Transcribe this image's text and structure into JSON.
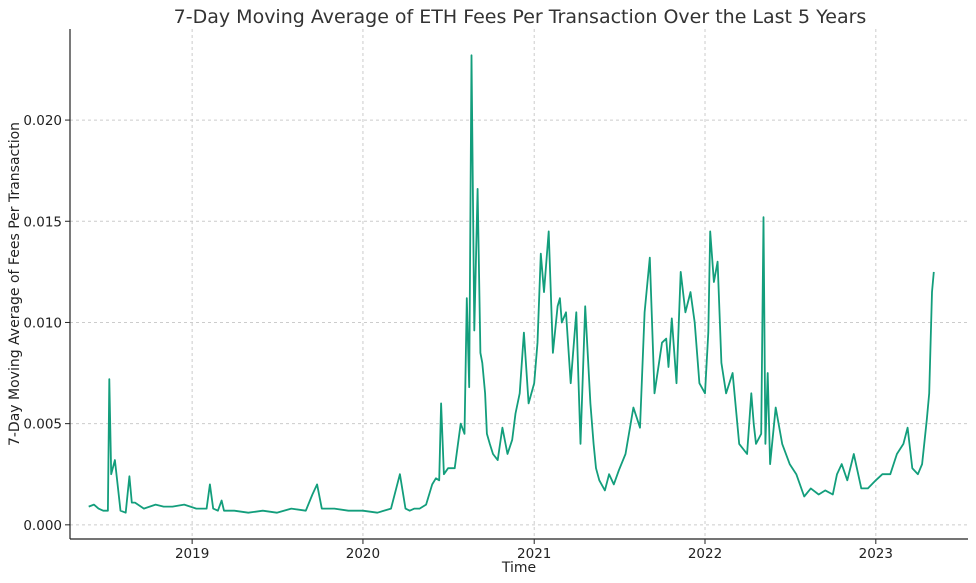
{
  "chart_data": {
    "type": "line",
    "title": "7-Day Moving Average of ETH Fees Per Transaction Over the Last 5 Years",
    "xlabel": "Time",
    "ylabel": "7-Day Moving Average of Fees Per Transaction",
    "xlim": [
      "2018-04-15",
      "2023-07-17"
    ],
    "ylim": [
      -0.0007,
      0.0245
    ],
    "x_ticks": [
      {
        "date": "2019-01-01",
        "label": "2019"
      },
      {
        "date": "2020-01-01",
        "label": "2020"
      },
      {
        "date": "2021-01-01",
        "label": "2021"
      },
      {
        "date": "2022-01-01",
        "label": "2022"
      },
      {
        "date": "2023-01-01",
        "label": "2023"
      }
    ],
    "y_ticks": [
      {
        "value": 0.0,
        "label": "0.000"
      },
      {
        "value": 0.005,
        "label": "0.005"
      },
      {
        "value": 0.01,
        "label": "0.010"
      },
      {
        "value": 0.015,
        "label": "0.015"
      },
      {
        "value": 0.02,
        "label": "0.020"
      }
    ],
    "grid": true,
    "color": "#139e7c",
    "series": [
      {
        "name": "",
        "x": [
          "2018-05-25",
          "2018-06-05",
          "2018-06-15",
          "2018-06-25",
          "2018-07-05",
          "2018-07-08",
          "2018-07-12",
          "2018-07-20",
          "2018-08-01",
          "2018-08-12",
          "2018-08-20",
          "2018-08-25",
          "2018-09-01",
          "2018-09-20",
          "2018-10-15",
          "2018-11-01",
          "2018-11-20",
          "2018-12-15",
          "2019-01-10",
          "2019-02-01",
          "2019-02-08",
          "2019-02-15",
          "2019-02-25",
          "2019-03-05",
          "2019-03-10",
          "2019-04-01",
          "2019-05-01",
          "2019-06-01",
          "2019-07-01",
          "2019-08-01",
          "2019-09-01",
          "2019-09-15",
          "2019-09-25",
          "2019-10-05",
          "2019-11-01",
          "2019-12-01",
          "2020-01-01",
          "2020-02-01",
          "2020-03-01",
          "2020-03-20",
          "2020-04-01",
          "2020-04-10",
          "2020-04-20",
          "2020-05-01",
          "2020-05-15",
          "2020-05-28",
          "2020-06-05",
          "2020-06-12",
          "2020-06-16",
          "2020-06-22",
          "2020-07-01",
          "2020-07-15",
          "2020-07-28",
          "2020-08-05",
          "2020-08-10",
          "2020-08-15",
          "2020-08-20",
          "2020-08-26",
          "2020-09-02",
          "2020-09-08",
          "2020-09-12",
          "2020-09-18",
          "2020-09-22",
          "2020-09-28",
          "2020-10-05",
          "2020-10-15",
          "2020-10-25",
          "2020-11-05",
          "2020-11-15",
          "2020-11-22",
          "2020-12-01",
          "2020-12-10",
          "2020-12-20",
          "2021-01-01",
          "2021-01-08",
          "2021-01-15",
          "2021-01-22",
          "2021-02-01",
          "2021-02-10",
          "2021-02-20",
          "2021-02-25",
          "2021-03-01",
          "2021-03-10",
          "2021-03-20",
          "2021-04-01",
          "2021-04-10",
          "2021-04-20",
          "2021-05-01",
          "2021-05-08",
          "2021-05-13",
          "2021-05-20",
          "2021-06-01",
          "2021-06-10",
          "2021-06-20",
          "2021-07-01",
          "2021-07-15",
          "2021-08-01",
          "2021-08-15",
          "2021-08-25",
          "2021-09-05",
          "2021-09-15",
          "2021-10-01",
          "2021-10-10",
          "2021-10-15",
          "2021-10-22",
          "2021-11-01",
          "2021-11-10",
          "2021-11-20",
          "2021-12-01",
          "2021-12-10",
          "2021-12-20",
          "2022-01-01",
          "2022-01-08",
          "2022-01-12",
          "2022-01-20",
          "2022-01-28",
          "2022-02-05",
          "2022-02-15",
          "2022-03-01",
          "2022-03-15",
          "2022-04-01",
          "2022-04-10",
          "2022-04-15",
          "2022-04-20",
          "2022-05-01",
          "2022-05-06",
          "2022-05-10",
          "2022-05-15",
          "2022-05-20",
          "2022-06-01",
          "2022-06-15",
          "2022-07-01",
          "2022-07-15",
          "2022-08-01",
          "2022-08-15",
          "2022-09-01",
          "2022-09-15",
          "2022-10-01",
          "2022-10-10",
          "2022-10-20",
          "2022-11-01",
          "2022-11-15",
          "2022-12-01",
          "2022-12-15",
          "2023-01-01",
          "2023-01-15",
          "2023-02-01",
          "2023-02-15",
          "2023-03-01",
          "2023-03-10",
          "2023-03-20",
          "2023-04-01",
          "2023-04-10",
          "2023-04-20",
          "2023-04-25",
          "2023-05-01",
          "2023-05-05"
        ],
        "values": [
          0.0009,
          0.001,
          0.0008,
          0.0007,
          0.0007,
          0.0072,
          0.0025,
          0.0032,
          0.0007,
          0.0006,
          0.0024,
          0.0011,
          0.0011,
          0.0008,
          0.001,
          0.0009,
          0.0009,
          0.001,
          0.0008,
          0.0008,
          0.002,
          0.0008,
          0.0007,
          0.0012,
          0.0007,
          0.0007,
          0.0006,
          0.0007,
          0.0006,
          0.0008,
          0.0007,
          0.0015,
          0.002,
          0.0008,
          0.0008,
          0.0007,
          0.0007,
          0.0006,
          0.0008,
          0.0025,
          0.0008,
          0.0007,
          0.0008,
          0.0008,
          0.001,
          0.002,
          0.0023,
          0.0022,
          0.006,
          0.0025,
          0.0028,
          0.0028,
          0.005,
          0.0045,
          0.0112,
          0.0068,
          0.0232,
          0.0096,
          0.0166,
          0.0085,
          0.008,
          0.0065,
          0.0045,
          0.004,
          0.0035,
          0.0032,
          0.0048,
          0.0035,
          0.0042,
          0.0055,
          0.0065,
          0.0095,
          0.006,
          0.007,
          0.009,
          0.0134,
          0.0115,
          0.0145,
          0.0085,
          0.0108,
          0.0112,
          0.01,
          0.0105,
          0.007,
          0.0105,
          0.004,
          0.0108,
          0.006,
          0.004,
          0.0028,
          0.0022,
          0.0017,
          0.0025,
          0.002,
          0.0027,
          0.0035,
          0.0058,
          0.0048,
          0.0105,
          0.0132,
          0.0065,
          0.009,
          0.0092,
          0.0078,
          0.0102,
          0.007,
          0.0125,
          0.0105,
          0.0115,
          0.01,
          0.007,
          0.0065,
          0.0095,
          0.0145,
          0.012,
          0.013,
          0.008,
          0.0065,
          0.0075,
          0.004,
          0.0035,
          0.0065,
          0.005,
          0.004,
          0.0045,
          0.0152,
          0.004,
          0.0075,
          0.003,
          0.0058,
          0.004,
          0.003,
          0.0025,
          0.0014,
          0.0018,
          0.0015,
          0.0017,
          0.0015,
          0.0025,
          0.003,
          0.0022,
          0.0035,
          0.0018,
          0.0018,
          0.0022,
          0.0025,
          0.0025,
          0.0035,
          0.004,
          0.0048,
          0.0028,
          0.0025,
          0.003,
          0.0052,
          0.0065,
          0.0115,
          0.0125
        ]
      }
    ]
  }
}
